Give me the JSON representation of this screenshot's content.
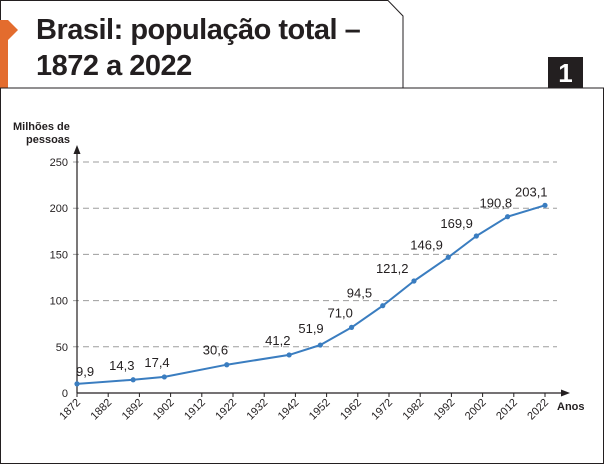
{
  "header": {
    "title_line1": "Brasil: população total –",
    "title_line2": "1872 a 2022",
    "badge": "1"
  },
  "colors": {
    "accent": "#e36c2e",
    "line": "#3a7dc0",
    "grid": "#9d9d9d",
    "text": "#231f20"
  },
  "chart_data": {
    "type": "line",
    "ylabel_line1": "Milhões de",
    "ylabel_line2": "pessoas",
    "xlabel": "Anos",
    "ylim": [
      0,
      250
    ],
    "y_ticks": [
      0,
      50,
      100,
      150,
      200,
      250
    ],
    "x_ticks": [
      1872,
      1882,
      1892,
      1902,
      1912,
      1922,
      1932,
      1942,
      1952,
      1962,
      1972,
      1982,
      1992,
      2002,
      2012,
      2022
    ],
    "grid": "horizontal dashed",
    "series": [
      {
        "points": [
          {
            "x": 1872,
            "y": 9.9,
            "label": "9,9"
          },
          {
            "x": 1890,
            "y": 14.3,
            "label": "14,3"
          },
          {
            "x": 1900,
            "y": 17.4,
            "label": "17,4"
          },
          {
            "x": 1920,
            "y": 30.6,
            "label": "30,6"
          },
          {
            "x": 1940,
            "y": 41.2,
            "label": "41,2"
          },
          {
            "x": 1950,
            "y": 51.9,
            "label": "51,9"
          },
          {
            "x": 1960,
            "y": 71.0,
            "label": "71,0"
          },
          {
            "x": 1970,
            "y": 94.5,
            "label": "94,5"
          },
          {
            "x": 1980,
            "y": 121.2,
            "label": "121,2"
          },
          {
            "x": 1991,
            "y": 146.9,
            "label": "146,9"
          },
          {
            "x": 2000,
            "y": 169.9,
            "label": "169,9"
          },
          {
            "x": 2010,
            "y": 190.8,
            "label": "190,8"
          },
          {
            "x": 2022,
            "y": 203.1,
            "label": "203,1"
          }
        ]
      }
    ]
  }
}
